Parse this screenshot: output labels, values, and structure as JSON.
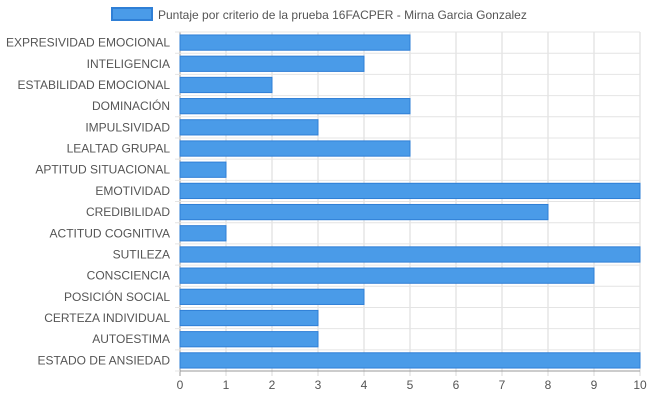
{
  "chart_data": {
    "type": "bar",
    "orientation": "horizontal",
    "categories": [
      "EXPRESIVIDAD EMOCIONAL",
      "INTELIGENCIA",
      "ESTABILIDAD EMOCIONAL",
      "DOMINACIÓN",
      "IMPULSIVIDAD",
      "LEALTAD GRUPAL",
      "APTITUD SITUACIONAL",
      "EMOTIVIDAD",
      "CREDIBILIDAD",
      "ACTITUD COGNITIVA",
      "SUTILEZA",
      "CONSCIENCIA",
      "POSICIÓN SOCIAL",
      "CERTEZA INDIVIDUAL",
      "AUTOESTIMA",
      "ESTADO DE ANSIEDAD"
    ],
    "series": [
      {
        "name": "Puntaje por criterio de la prueba 16FACPER - Mirna Garcia Gonzalez",
        "values": [
          5,
          4,
          2,
          5,
          3,
          5,
          1,
          10,
          8,
          1,
          10,
          9,
          4,
          3,
          3,
          10
        ],
        "color": "#4a9be8",
        "border_color": "#2f7fd6"
      }
    ],
    "xticks": [
      "0",
      "1",
      "2",
      "3",
      "4",
      "5",
      "6",
      "7",
      "8",
      "9",
      "10"
    ],
    "xlim": [
      0,
      10
    ],
    "grid": true,
    "legend_position": "top"
  }
}
